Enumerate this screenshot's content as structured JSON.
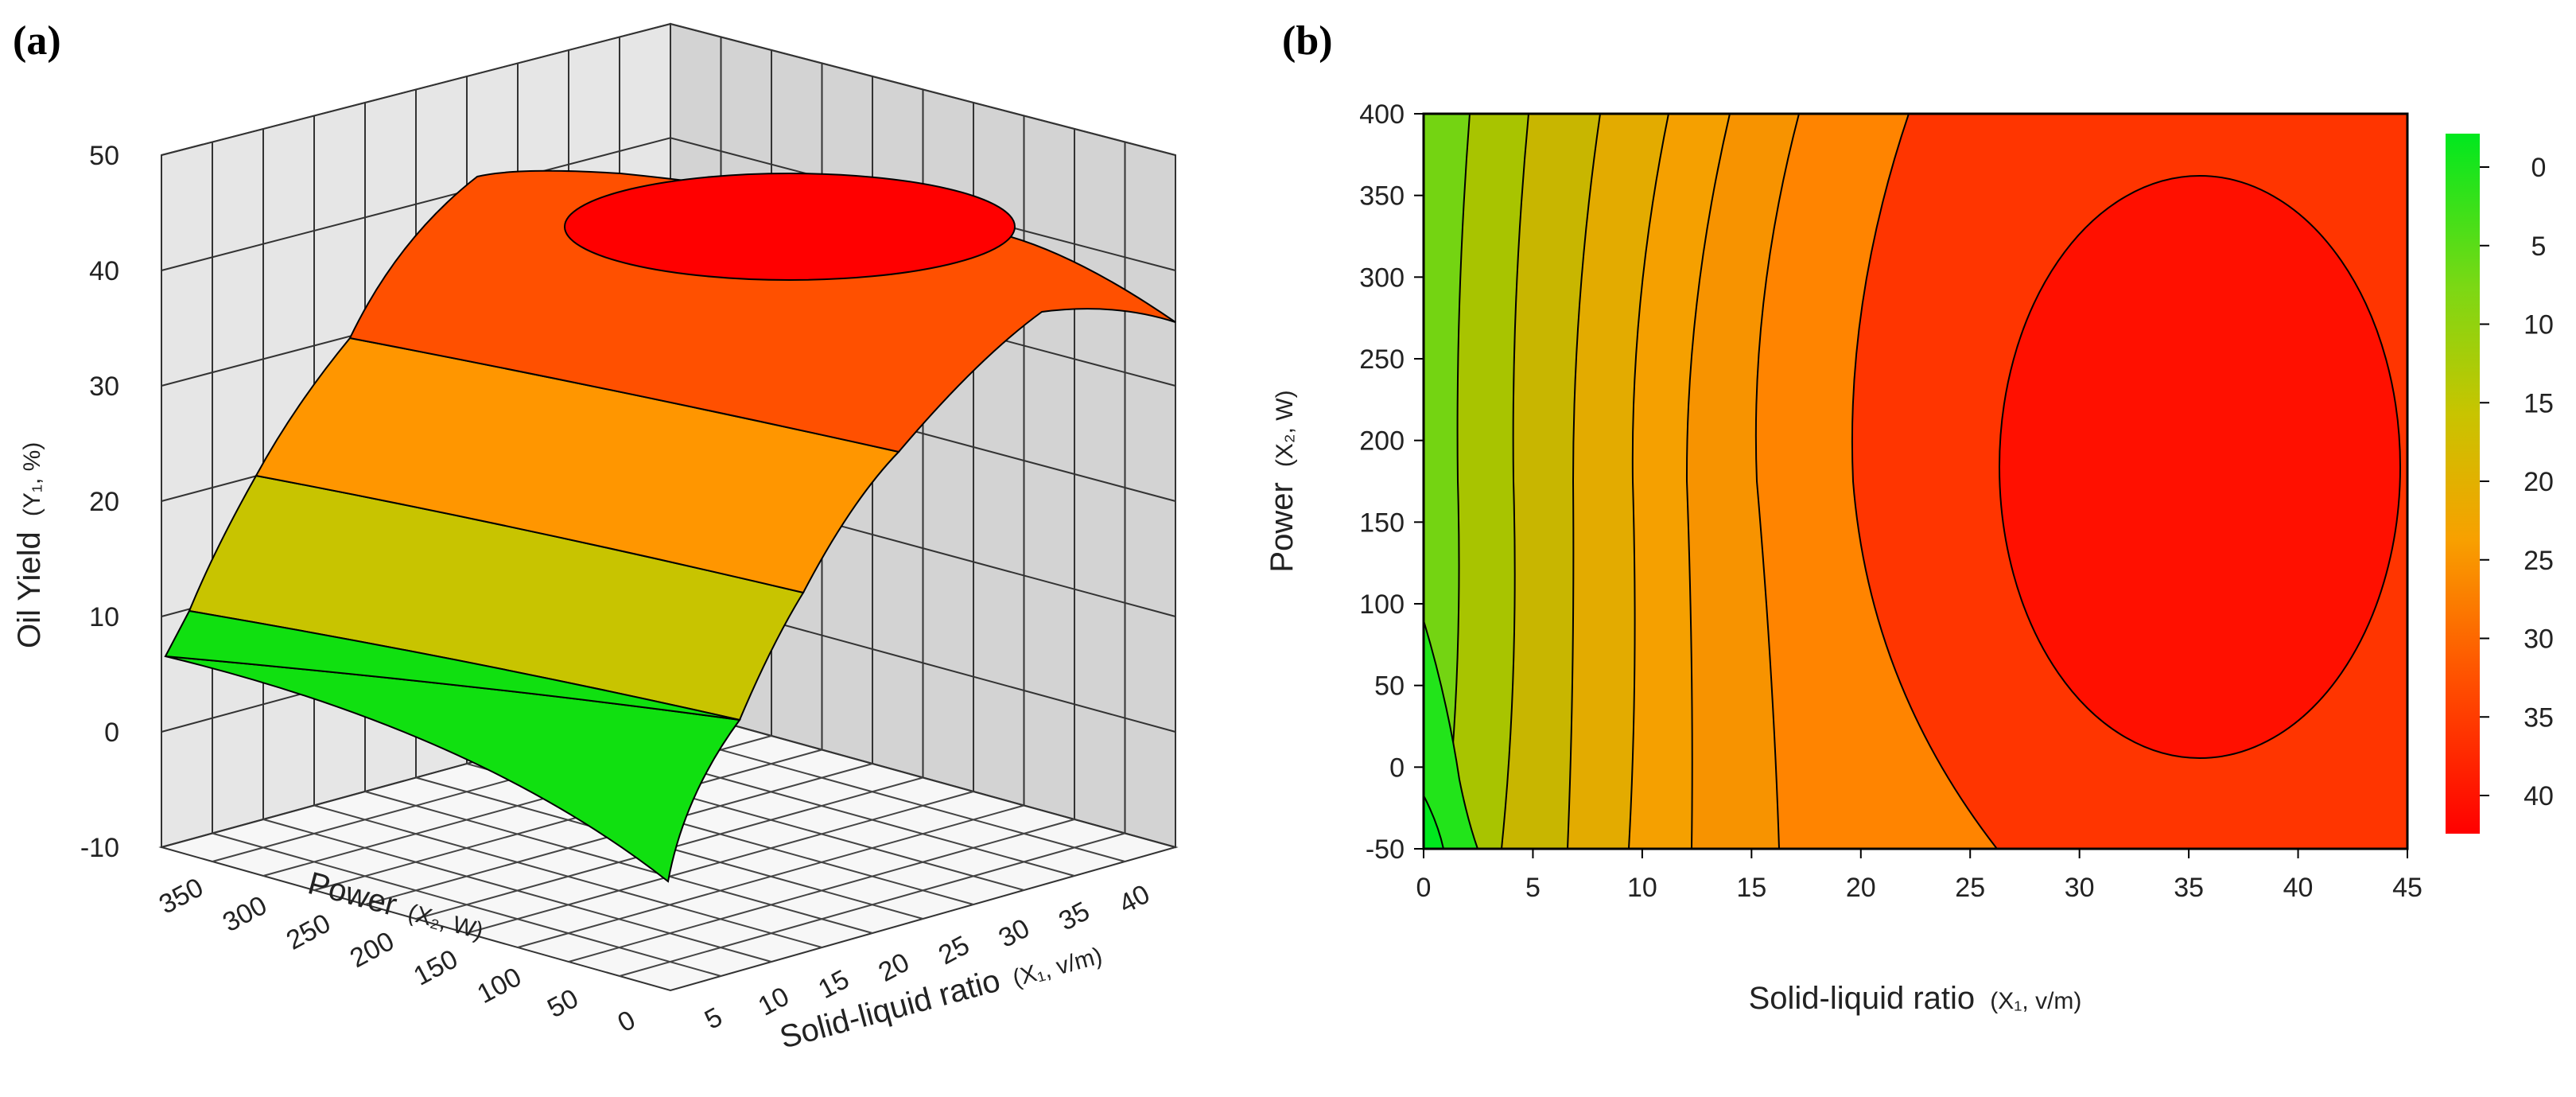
{
  "figure": {
    "panel_a_label": "(a)",
    "panel_b_label": "(b)"
  },
  "chart_data": [
    {
      "type": "surface3d",
      "panel": "(a)",
      "title": "",
      "zlabel": {
        "main": "Oil Yield",
        "sub": "(Y₁, %)"
      },
      "xlabel": {
        "main": "Solid-liquid ratio",
        "sub": "(X₁, v/m)"
      },
      "ylabel": {
        "main": "Power",
        "sub": "(X₂, W)"
      },
      "zlim": [
        -10,
        50
      ],
      "z_ticks": [
        "50",
        "40",
        "30",
        "20",
        "10",
        "0",
        "-10"
      ],
      "x_ticks": [
        "5",
        "10",
        "15",
        "20",
        "25",
        "30",
        "35",
        "40"
      ],
      "y_ticks": [
        "350",
        "300",
        "250",
        "200",
        "150",
        "100",
        "50",
        "0"
      ],
      "color_bands": [
        {
          "range": [
            -10,
            10
          ],
          "color": "#10e010"
        },
        {
          "range": [
            10,
            20
          ],
          "color": "#c8c400"
        },
        {
          "range": [
            20,
            30
          ],
          "color": "#ff9600"
        },
        {
          "range": [
            30,
            40
          ],
          "color": "#ff5000"
        },
        {
          "range": [
            40,
            50
          ],
          "color": "#ff0000"
        }
      ],
      "max_yield": 47
    },
    {
      "type": "contour",
      "panel": "(b)",
      "title": "",
      "xlabel": {
        "main": "Solid-liquid ratio",
        "sub": "(X₁, v/m)"
      },
      "ylabel": {
        "main": "Power",
        "sub": "(X₂, W)"
      },
      "xlim": [
        0,
        45
      ],
      "ylim": [
        -50,
        400
      ],
      "x_ticks": [
        "0",
        "5",
        "10",
        "15",
        "20",
        "25",
        "30",
        "35",
        "40",
        "45"
      ],
      "y_ticks": [
        "400",
        "350",
        "300",
        "250",
        "200",
        "150",
        "100",
        "50",
        "0",
        "-50"
      ],
      "contour_levels": [
        0,
        5,
        10,
        15,
        20,
        25,
        30,
        35,
        40
      ],
      "optimum": {
        "x": 34.5,
        "y": 200
      },
      "colorbar": {
        "labels": [
          "0",
          "5",
          "10",
          "15",
          "20",
          "25",
          "30",
          "35",
          "40"
        ],
        "colors": [
          "#00e81e",
          "#36e41a",
          "#7cd814",
          "#b8c800",
          "#e0b400",
          "#f8a000",
          "#ff8000",
          "#ff5000",
          "#ff1400",
          "#ff0000"
        ]
      }
    }
  ]
}
